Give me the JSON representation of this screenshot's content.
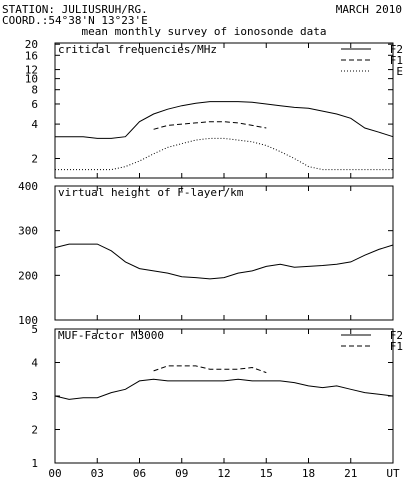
{
  "header": {
    "station_line": "STATION: JULIUSRUH/RG.",
    "coord_line": "COORD.:54°38'N 13°23'E",
    "date": "MARCH 2010",
    "subtitle": "mean monthly survey of ionosonde data"
  },
  "x_axis": {
    "ticks": [
      0,
      3,
      6,
      9,
      12,
      15,
      18,
      21,
      24
    ],
    "tick_labels": [
      "00",
      "03",
      "06",
      "09",
      "12",
      "15",
      "18",
      "21",
      "UT"
    ],
    "range": [
      0,
      24
    ]
  },
  "chart_data": [
    {
      "type": "line",
      "title": "critical frequencies/MHz",
      "y_scale": "log",
      "ylim": [
        1.35,
        20.5
      ],
      "y_ticks": [
        2,
        4,
        6,
        8,
        10,
        12,
        16,
        20
      ],
      "legend_position": "top-right",
      "series": [
        {
          "name": "F2",
          "style": "solid",
          "x": [
            0,
            1,
            2,
            3,
            4,
            5,
            6,
            7,
            8,
            9,
            10,
            11,
            12,
            13,
            14,
            15,
            16,
            17,
            18,
            19,
            20,
            21,
            22,
            23,
            24
          ],
          "values": [
            3.1,
            3.1,
            3.1,
            3.0,
            3.0,
            3.1,
            4.2,
            4.9,
            5.4,
            5.8,
            6.1,
            6.3,
            6.3,
            6.3,
            6.2,
            6.0,
            5.8,
            5.6,
            5.5,
            5.2,
            4.9,
            4.5,
            3.7,
            3.4,
            3.1
          ]
        },
        {
          "name": "F1",
          "style": "dashed",
          "x": [
            7,
            8,
            9,
            10,
            11,
            12,
            13,
            14,
            15
          ],
          "values": [
            3.6,
            3.9,
            4.0,
            4.1,
            4.2,
            4.2,
            4.1,
            3.9,
            3.7
          ]
        },
        {
          "name": "E",
          "style": "dotted",
          "x": [
            0,
            1,
            2,
            3,
            4,
            5,
            6,
            7,
            8,
            9,
            10,
            11,
            12,
            13,
            14,
            15,
            16,
            17,
            18,
            19,
            20,
            21,
            22,
            23,
            24
          ],
          "values": [
            1.6,
            1.6,
            1.6,
            1.6,
            1.6,
            1.7,
            1.9,
            2.2,
            2.5,
            2.7,
            2.9,
            3.0,
            3.0,
            2.9,
            2.8,
            2.6,
            2.3,
            2.0,
            1.7,
            1.6,
            1.6,
            1.6,
            1.6,
            1.6,
            1.6
          ]
        }
      ]
    },
    {
      "type": "line",
      "title": "virtual height of F-layer/km",
      "ylim": [
        100,
        400
      ],
      "y_ticks": [
        100,
        200,
        300,
        400
      ],
      "series": [
        {
          "name": "",
          "style": "solid",
          "x": [
            0,
            1,
            2,
            3,
            4,
            5,
            6,
            7,
            8,
            9,
            10,
            11,
            12,
            13,
            14,
            15,
            16,
            17,
            18,
            19,
            20,
            21,
            22,
            23,
            24
          ],
          "values": [
            262,
            270,
            270,
            270,
            255,
            230,
            215,
            210,
            205,
            197,
            195,
            192,
            195,
            205,
            210,
            220,
            225,
            218,
            220,
            222,
            225,
            230,
            245,
            258,
            268
          ]
        }
      ]
    },
    {
      "type": "line",
      "title": "MUF-Factor M3000",
      "ylim": [
        1,
        5
      ],
      "y_ticks": [
        1,
        2,
        3,
        4,
        5
      ],
      "legend_position": "top-right",
      "series": [
        {
          "name": "F2",
          "style": "solid",
          "x": [
            0,
            1,
            2,
            3,
            4,
            5,
            6,
            7,
            8,
            9,
            10,
            11,
            12,
            13,
            14,
            15,
            16,
            17,
            18,
            19,
            20,
            21,
            22,
            23,
            24
          ],
          "values": [
            3.0,
            2.9,
            2.95,
            2.95,
            3.1,
            3.2,
            3.45,
            3.5,
            3.45,
            3.45,
            3.45,
            3.45,
            3.45,
            3.5,
            3.45,
            3.45,
            3.45,
            3.4,
            3.3,
            3.25,
            3.3,
            3.2,
            3.1,
            3.05,
            3.0
          ]
        },
        {
          "name": "F1",
          "style": "dashed",
          "x": [
            7,
            8,
            9,
            10,
            11,
            12,
            13,
            14,
            15
          ],
          "values": [
            3.75,
            3.9,
            3.9,
            3.9,
            3.8,
            3.8,
            3.8,
            3.85,
            3.7
          ]
        }
      ]
    }
  ]
}
